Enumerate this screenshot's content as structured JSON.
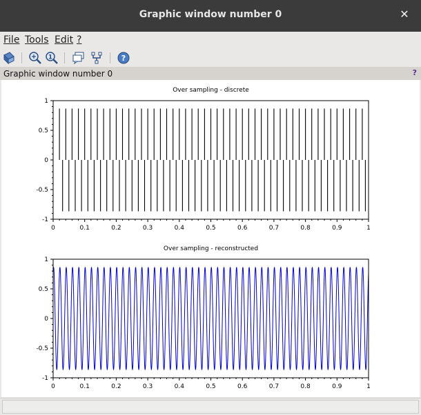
{
  "window": {
    "title": "Graphic window number 0",
    "close_glyph": "✕"
  },
  "menu": {
    "items": [
      "File",
      "Tools",
      "Edit",
      "?"
    ]
  },
  "toolbar": {
    "icons": [
      "rotate-2d-3d-icon",
      "zoom-icon",
      "unzoom-icon",
      "datatip-icon",
      "datatip-edit-icon",
      "help-icon"
    ]
  },
  "panel": {
    "label": "Graphic window number 0",
    "help_glyph": "?"
  },
  "colors": {
    "discrete": "#000000",
    "reconstructed": "#0000cc",
    "help_accent": "#5b2d8c"
  },
  "chart_data": [
    {
      "type": "line",
      "title": "Over sampling - discrete",
      "style": "stem",
      "x_range": [
        0,
        1
      ],
      "y_range": [
        -1,
        1
      ],
      "x_ticks": [
        "0",
        "0.1",
        "0.2",
        "0.3",
        "0.4",
        "0.5",
        "0.6",
        "0.7",
        "0.8",
        "0.9",
        "1"
      ],
      "y_ticks": [
        "1",
        "0.5",
        "0",
        "-0.5",
        "-1"
      ],
      "frequency": 50,
      "amplitude": 0.866,
      "sample_rate": 100,
      "series_color": "#000000"
    },
    {
      "type": "line",
      "title": "Over sampling - reconstructed",
      "style": "line",
      "x_range": [
        0,
        1
      ],
      "y_range": [
        -1,
        1
      ],
      "x_ticks": [
        "0",
        "0.1",
        "0.2",
        "0.3",
        "0.4",
        "0.5",
        "0.6",
        "0.7",
        "0.8",
        "0.9",
        "1"
      ],
      "y_ticks": [
        "1",
        "0.5",
        "0",
        "-0.5",
        "-1"
      ],
      "frequency": 50,
      "amplitude": 0.866,
      "series_color": "#0000cc"
    }
  ]
}
